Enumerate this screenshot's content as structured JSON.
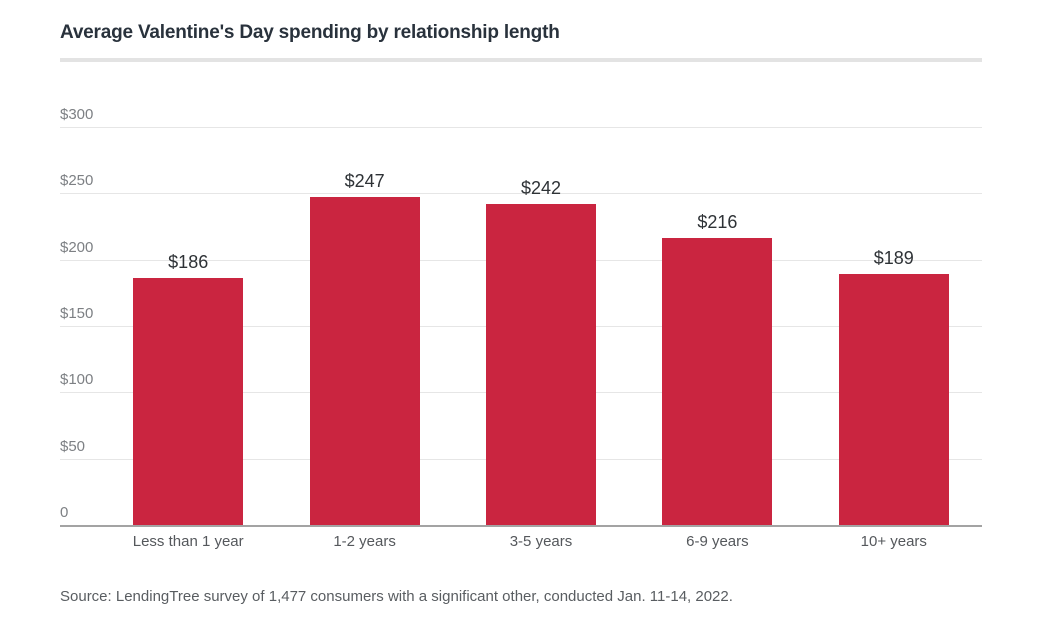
{
  "header": {
    "title": "Average Valentine's Day spending by relationship length"
  },
  "chart_data": {
    "type": "bar",
    "title": "Average Valentine's Day spending by relationship length",
    "categories": [
      "Less than 1 year",
      "1-2 years",
      "3-5 years",
      "6-9 years",
      "10+ years"
    ],
    "values": [
      186,
      247,
      242,
      216,
      189
    ],
    "value_labels": [
      "$186",
      "$247",
      "$242",
      "$216",
      "$189"
    ],
    "xlabel": "",
    "ylabel": "",
    "ylim": [
      0,
      300
    ],
    "yticks": [
      {
        "value": 300,
        "label": "$300"
      },
      {
        "value": 250,
        "label": "$250"
      },
      {
        "value": 200,
        "label": "$200"
      },
      {
        "value": 150,
        "label": "$150"
      },
      {
        "value": 100,
        "label": "$100"
      },
      {
        "value": 50,
        "label": "$50"
      },
      {
        "value": 0,
        "label": "0"
      }
    ],
    "grid": "horizontal",
    "legend": "none",
    "bar_color": "#ca2540"
  },
  "footer": {
    "source": "Source: LendingTree survey of 1,477 consumers with a significant other, conducted Jan. 11-14, 2022."
  },
  "colors": {
    "background": "#ffffff",
    "title_text": "#29323c",
    "y_tick_text": "#7d8084",
    "x_tick_text": "#55585c",
    "value_label_text": "#2e3236",
    "source_text": "#595d61",
    "gridline": "#e6e6e6",
    "baseline": "#a3a3a3",
    "title_rule": "#e3e3e3",
    "bar": "#ca2540"
  }
}
